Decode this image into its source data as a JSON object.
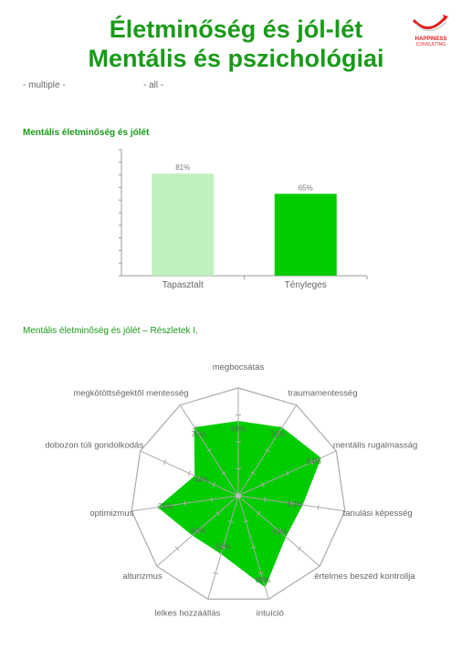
{
  "header": {
    "title_line1": "Életminőség és jól-lét",
    "title_line2": "Mentális és pszichológiai",
    "logo_text_1": "HAPPINESS",
    "logo_text_2": "CONSULTING"
  },
  "filters": {
    "left": "- multiple -",
    "right": "- all -"
  },
  "colors": {
    "title": "#1a9a1a",
    "bar_light": "#bff0bf",
    "bar_dark": "#00cc00",
    "radar_fill": "#00cc00",
    "grid": "#aaaaaa"
  },
  "chart_data": [
    {
      "type": "bar",
      "title": "Mentális életminőség és jólét",
      "categories": [
        "Tapasztalt",
        "Tényleges"
      ],
      "values": [
        81,
        65
      ],
      "value_labels": [
        "81%",
        "65%"
      ],
      "ylim": [
        0,
        100
      ],
      "grid": false
    },
    {
      "type": "radar",
      "title": "Mentális életminőség és jólét – Részletek I.",
      "categories": [
        "megbocsátás",
        "traumamentesség",
        "mentális rugalmasság",
        "tanulási képesség",
        "értelmes beszéd kontrollja",
        "intuíció",
        "lelkes hozzáállás",
        "alturizmus",
        "optimizmus",
        "dobozon túli gondolkodás",
        "megkötöttségektől mentesség"
      ],
      "values": [
        69,
        75,
        84,
        60,
        58,
        88,
        56,
        56,
        75,
        44,
        75
      ],
      "value_labels": [
        "69%",
        "75%",
        "84%",
        "60%",
        "58%",
        "88%",
        "56%",
        "56%",
        "75%",
        "44%",
        "75%"
      ],
      "rlim": [
        0,
        100
      ]
    }
  ]
}
